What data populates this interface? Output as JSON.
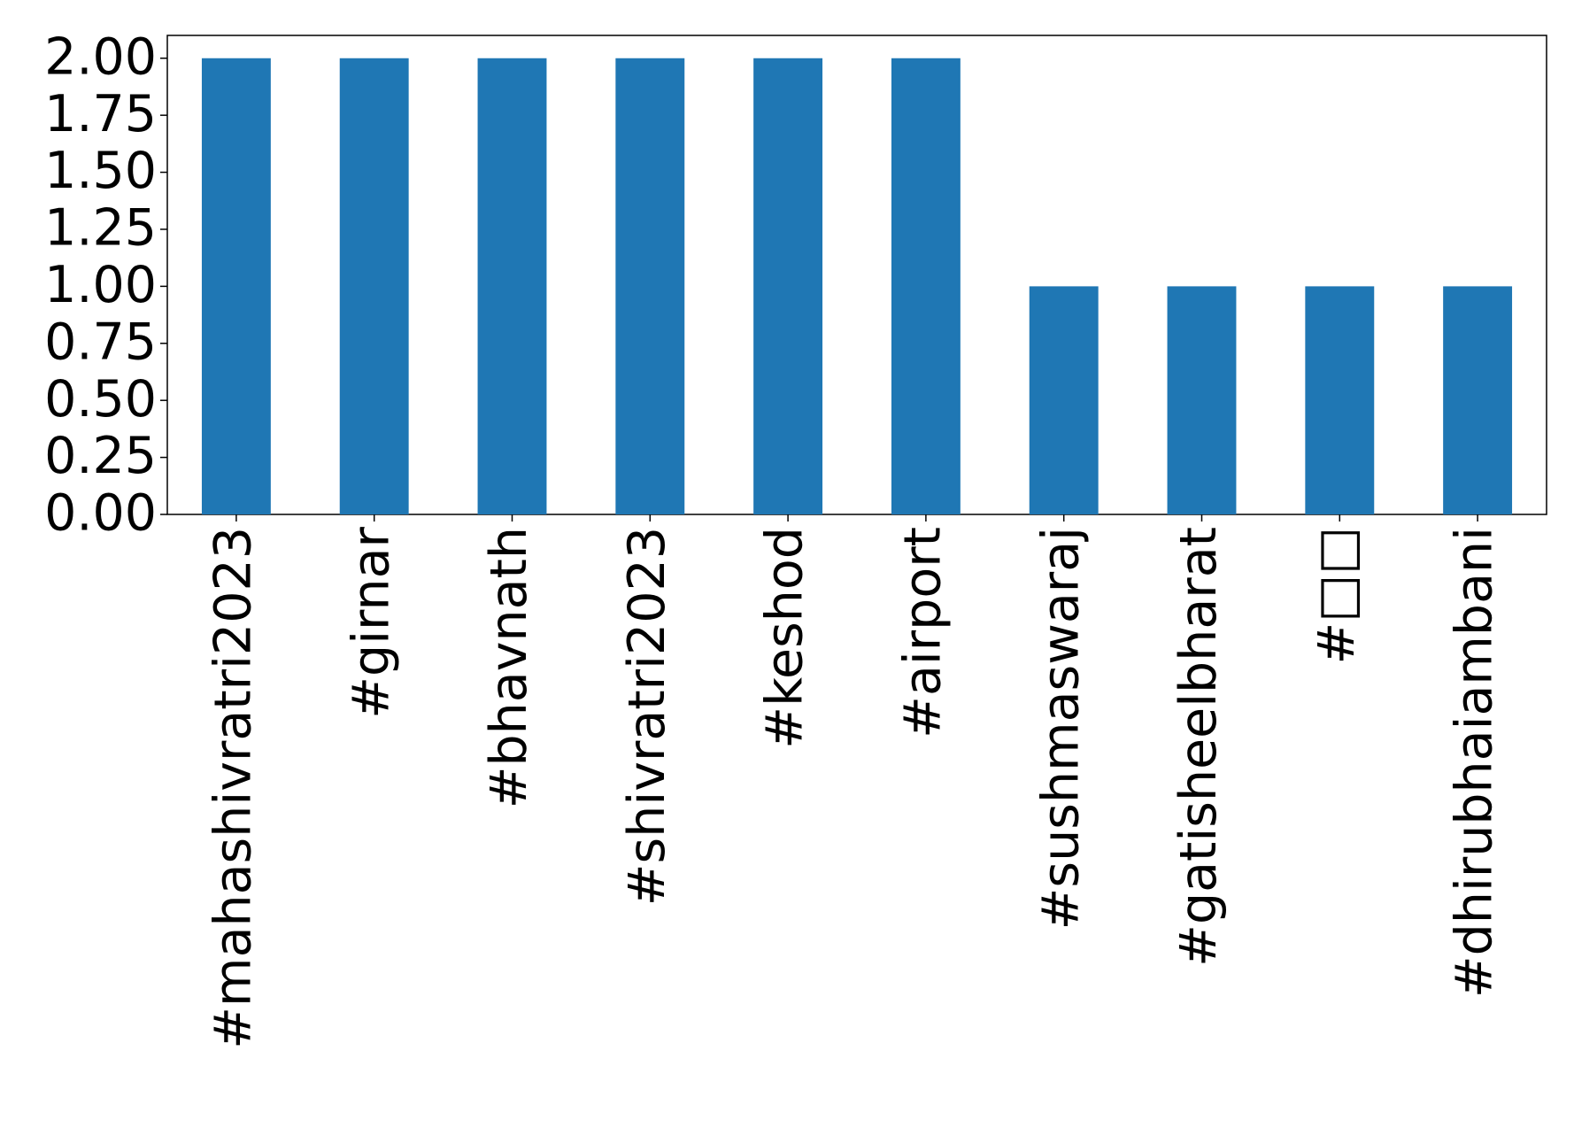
{
  "chart_data": {
    "type": "bar",
    "categories": [
      "#mahashivratri2023",
      "#girnar",
      "#bhavnath",
      "#shivratri2023",
      "#keshod",
      "#airport",
      "#sushmaswaraj",
      "#gatisheelbharat",
      "#□□",
      "#dhirubhaiambani"
    ],
    "values": [
      2,
      2,
      2,
      2,
      2,
      2,
      1,
      1,
      1,
      1
    ],
    "color": "#1f77b4",
    "ylim": [
      0,
      2.1
    ],
    "yticks": [
      {
        "value": 0,
        "label": "0.00"
      },
      {
        "value": 0.25,
        "label": "0.25"
      },
      {
        "value": 0.5,
        "label": "0.50"
      },
      {
        "value": 0.75,
        "label": "0.75"
      },
      {
        "value": 1,
        "label": "1.00"
      },
      {
        "value": 1.25,
        "label": "1.25"
      },
      {
        "value": 1.5,
        "label": "1.50"
      },
      {
        "value": 1.75,
        "label": "1.75"
      },
      {
        "value": 2,
        "label": "2.00"
      }
    ],
    "grid": false
  }
}
